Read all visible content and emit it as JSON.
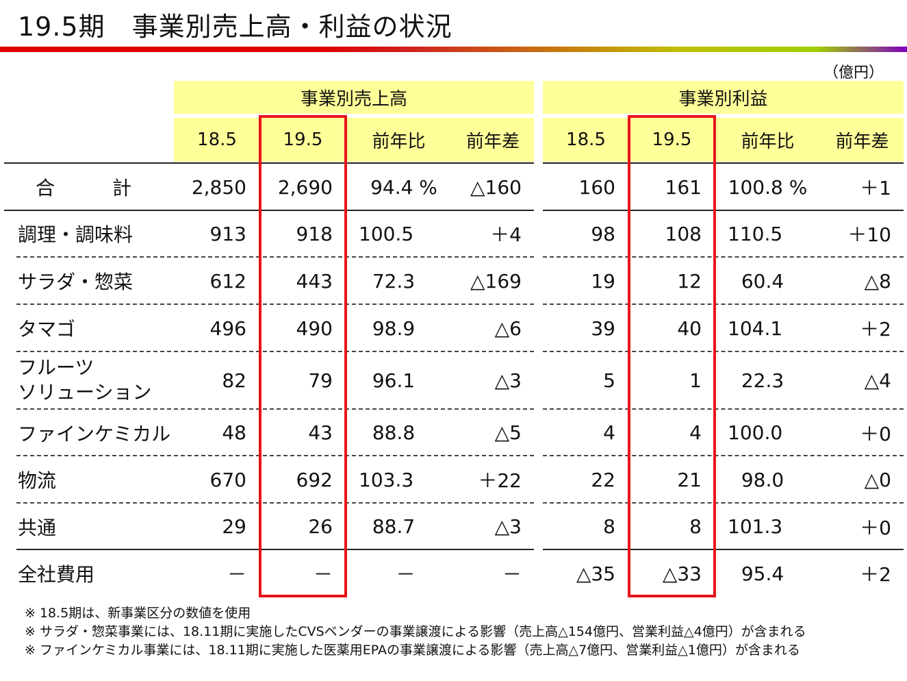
{
  "title": "19.5期　事業別売上高・利益の状況",
  "unit": "（億円）",
  "groups": {
    "sales": "事業別売上高",
    "profit": "事業別利益"
  },
  "columns": {
    "sales": [
      "18.5",
      "19.5",
      "前年比",
      "前年差"
    ],
    "profit": [
      "18.5",
      "19.5",
      "前年比",
      "前年差"
    ]
  },
  "rows": [
    {
      "label": "合　　　計",
      "s185": "2,850",
      "s195": "2,690",
      "sratio": "94.4 %",
      "sdiff": "△160",
      "p185": "160",
      "p195": "161",
      "pratio": "100.8 %",
      "pdiff": "＋1"
    },
    {
      "label": "調理・調味料",
      "s185": "913",
      "s195": "918",
      "sratio": "100.5",
      "sdiff": "＋4",
      "p185": "98",
      "p195": "108",
      "pratio": "110.5",
      "pdiff": "＋10"
    },
    {
      "label": "サラダ・惣菜",
      "s185": "612",
      "s195": "443",
      "sratio": "72.3",
      "sdiff": "△169",
      "p185": "19",
      "p195": "12",
      "pratio": "60.4",
      "pdiff": "△8"
    },
    {
      "label": "タマゴ",
      "s185": "496",
      "s195": "490",
      "sratio": "98.9",
      "sdiff": "△6",
      "p185": "39",
      "p195": "40",
      "pratio": "104.1",
      "pdiff": "＋2"
    },
    {
      "label": "フルーツ",
      "label2": "ソリューション",
      "s185": "82",
      "s195": "79",
      "sratio": "96.1",
      "sdiff": "△3",
      "p185": "5",
      "p195": "1",
      "pratio": "22.3",
      "pdiff": "△4"
    },
    {
      "label": "ファインケミカル",
      "s185": "48",
      "s195": "43",
      "sratio": "88.8",
      "sdiff": "△5",
      "p185": "4",
      "p195": "4",
      "pratio": "100.0",
      "pdiff": "＋0"
    },
    {
      "label": "物流",
      "s185": "670",
      "s195": "692",
      "sratio": "103.3",
      "sdiff": "＋22",
      "p185": "22",
      "p195": "21",
      "pratio": "98.0",
      "pdiff": "△0"
    },
    {
      "label": "共通",
      "s185": "29",
      "s195": "26",
      "sratio": "88.7",
      "sdiff": "△3",
      "p185": "8",
      "p195": "8",
      "pratio": "101.3",
      "pdiff": "＋0"
    },
    {
      "label": "全社費用",
      "s185": "－",
      "s195": "－",
      "sratio": "－",
      "sdiff": "－",
      "p185": "△35",
      "p195": "△33",
      "pratio": "95.4",
      "pdiff": "＋2"
    }
  ],
  "notes": [
    "※ 18.5期は、新事業区分の数値を使用",
    "※ サラダ・惣菜事業には、18.11期に実施したCVSベンダーの事業譲渡による影響（売上高△154億円、営業利益△4億円）が含まれる",
    "※ ファインケミカル事業には、18.11期に実施した医薬用EPAの事業譲渡による影響（売上高△7億円、営業利益△1億円）が含まれる"
  ],
  "colors": {
    "header_bg": "#ffff99",
    "highlight": "#e8141a"
  }
}
